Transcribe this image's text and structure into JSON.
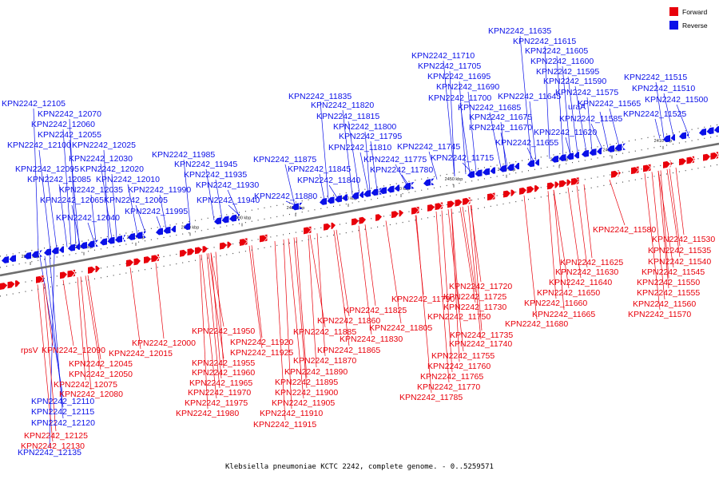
{
  "caption": "Klebsiella pneumoniae KCTC 2242, complete genome. - 0..5259571",
  "legend": [
    {
      "label": "Forward",
      "color": "#e8000b"
    },
    {
      "label": "Reverse",
      "color": "#0a10e8"
    }
  ],
  "colors": {
    "forward": "#e8000b",
    "reverse": "#0a10e8",
    "backbone": "#6e6e6e",
    "dots": "#444444"
  },
  "ticks": [
    "2530 kbp",
    "2520 kbp",
    "2510 kbp",
    "2500 kbp",
    "2490 kbp",
    "2480 kbp",
    "2470 kbp",
    "2460 kbp",
    "2450 kbp",
    "2440 kbp",
    "2430 kbp",
    "2420 kbp",
    "2410 kbp"
  ],
  "reverse_labels": [
    "KPN2242_12105",
    "KPN2242_12070",
    "KPN2242_12060",
    "KPN2242_12055",
    "KPN2242_12100",
    "KPN2242_12025",
    "KPN2242_11985",
    "KPN2242_11945",
    "KPN2242_12095",
    "KPN2242_12030",
    "KPN2242_12020",
    "KPN2242_11935",
    "KPN2242_12085",
    "KPN2242_12010",
    "KPN2242_11930",
    "KPN2242_12035",
    "KPN2242_11990",
    "KPN2242_12065",
    "KPN2242_12005",
    "KPN2242_11940",
    "KPN2242_11995",
    "KPN2242_12040",
    "KPN2242_11835",
    "KPN2242_11820",
    "KPN2242_11815",
    "KPN2242_11800",
    "KPN2242_11795",
    "KPN2242_11810",
    "KPN2242_11875",
    "KPN2242_11775",
    "KPN2242_11845",
    "KPN2242_11780",
    "KPN2242_11840",
    "KPN2242_11880",
    "KPN2242_11710",
    "KPN2242_11705",
    "KPN2242_11695",
    "KPN2242_11690",
    "KPN2242_11700",
    "KPN2242_11685",
    "KPN2242_11675",
    "KPN2242_11670",
    "KPN2242_11745",
    "KPN2242_11715",
    "KPN2242_11635",
    "KPN2242_11615",
    "KPN2242_11605",
    "KPN2242_11600",
    "KPN2242_11595",
    "KPN2242_11590",
    "KPN2242_11575",
    "KPN2242_11645",
    "uraA",
    "KPN2242_11565",
    "KPN2242_11585",
    "KPN2242_11620",
    "KPN2242_11655",
    "KPN2242_11515",
    "KPN2242_11510",
    "KPN2242_11500",
    "KPN2242_11525",
    "KPN2242_12110",
    "KPN2242_12115",
    "KPN2242_12120",
    "KPN2242_12135"
  ],
  "forward_labels": [
    "rpsV",
    "KPN2242_12090",
    "KPN2242_12045",
    "KPN2242_12050",
    "KPN2242_12075",
    "KPN2242_12080",
    "KPN2242_12125",
    "KPN2242_12130",
    "KPN2242_12000",
    "KPN2242_12015",
    "KPN2242_11950",
    "KPN2242_11955",
    "KPN2242_11960",
    "KPN2242_11965",
    "KPN2242_11970",
    "KPN2242_11975",
    "KPN2242_11980",
    "KPN2242_11920",
    "KPN2242_11925",
    "KPN2242_11885",
    "KPN2242_11890",
    "KPN2242_11895",
    "KPN2242_11900",
    "KPN2242_11905",
    "KPN2242_11910",
    "KPN2242_11915",
    "KPN2242_11860",
    "KPN2242_11865",
    "KPN2242_11870",
    "KPN2242_11825",
    "KPN2242_11830",
    "KPN2242_11805",
    "KPN2242_11790",
    "KPN2242_11720",
    "KPN2242_11725",
    "KPN2242_11730",
    "KPN2242_11750",
    "KPN2242_11735",
    "KPN2242_11740",
    "KPN2242_11755",
    "KPN2242_11760",
    "KPN2242_11765",
    "KPN2242_11770",
    "KPN2242_11785",
    "KPN2242_11625",
    "KPN2242_11630",
    "KPN2242_11640",
    "KPN2242_11650",
    "KPN2242_11660",
    "KPN2242_11665",
    "KPN2242_11680",
    "KPN2242_11580",
    "KPN2242_11530",
    "KPN2242_11535",
    "KPN2242_11540",
    "KPN2242_11545",
    "KPN2242_11550",
    "KPN2242_11555",
    "KPN2242_11560",
    "KPN2242_11570"
  ]
}
